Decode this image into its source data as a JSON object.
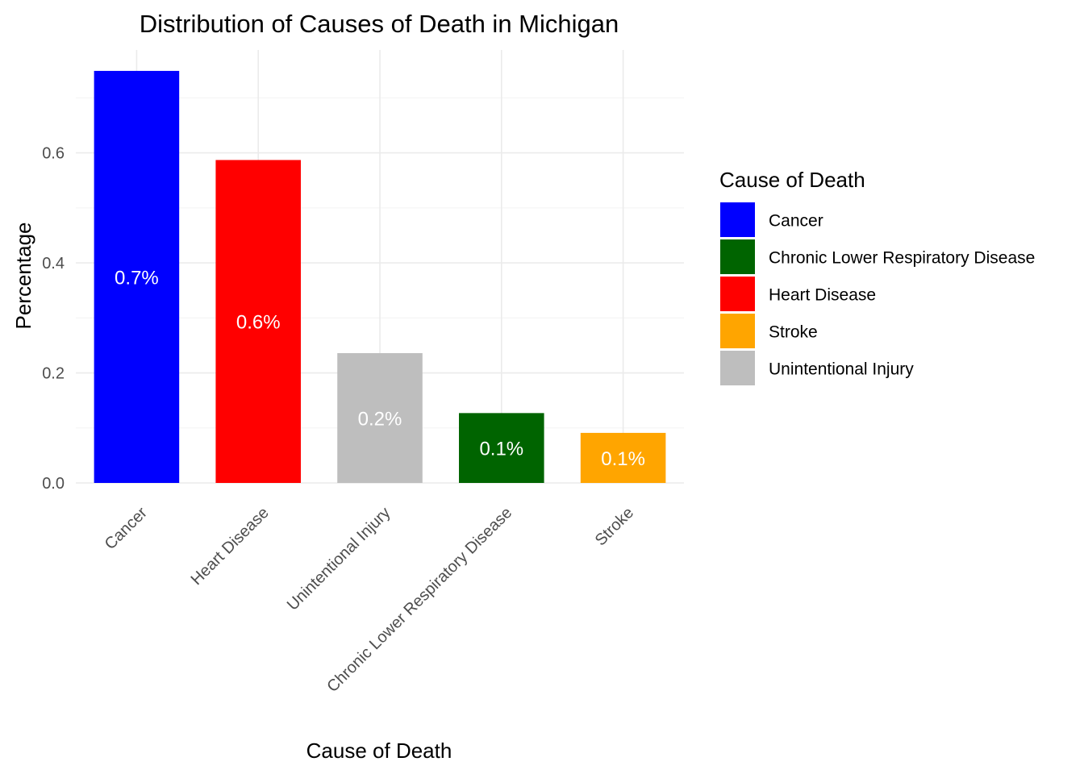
{
  "chart_data": {
    "type": "bar",
    "title": "Distribution of Causes of Death in Michigan",
    "xlabel": "Cause of Death",
    "ylabel": "Percentage",
    "categories": [
      "Cancer",
      "Heart Disease",
      "Unintentional Injury",
      "Chronic Lower Respiratory Disease",
      "Stroke"
    ],
    "values": [
      0.749,
      0.587,
      0.236,
      0.127,
      0.091
    ],
    "data_labels": [
      "0.7%",
      "0.6%",
      "0.2%",
      "0.1%",
      "0.1%"
    ],
    "colors": [
      "#0000FF",
      "#FF0000",
      "#BEBEBE",
      "#006400",
      "#FFA500"
    ],
    "ylim": [
      0,
      0.787
    ],
    "y_ticks": [
      0.0,
      0.2,
      0.4,
      0.6
    ],
    "y_tick_labels": [
      "0.0",
      "0.2",
      "0.4",
      "0.6"
    ],
    "grid": true,
    "legend": {
      "title": "Cause of Death",
      "position": "right",
      "items": [
        {
          "label": "Cancer",
          "color": "#0000FF"
        },
        {
          "label": "Chronic Lower Respiratory Disease",
          "color": "#006400"
        },
        {
          "label": "Heart Disease",
          "color": "#FF0000"
        },
        {
          "label": "Stroke",
          "color": "#FFA500"
        },
        {
          "label": "Unintentional Injury",
          "color": "#BEBEBE"
        }
      ]
    }
  }
}
